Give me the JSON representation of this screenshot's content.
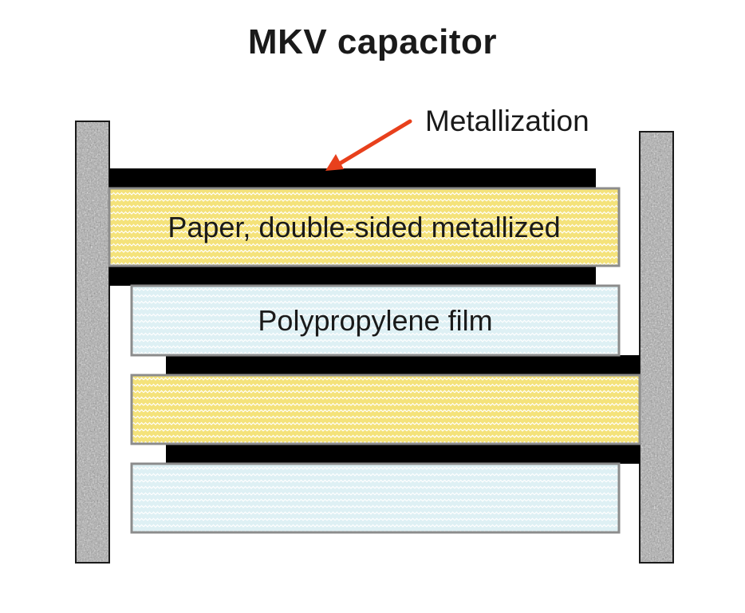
{
  "title": "MKV capacitor",
  "annotations": {
    "metallization": "Metallization"
  },
  "layers": {
    "paper": "Paper, double-sided metallized",
    "polypropylene": "Polypropylene film"
  },
  "colors": {
    "paper_fill": "#f4e27a",
    "paper_wave": "#ffffff",
    "film_fill": "#def0f4",
    "film_wave": "#ffffff",
    "metal": "#000000",
    "electrode_base": "#a0a0a0",
    "arrow": "#e8401c",
    "outline": "#8c8c8c"
  },
  "icons": {
    "electrodes": "textured-end-contact",
    "arrow": "red-arrow"
  }
}
